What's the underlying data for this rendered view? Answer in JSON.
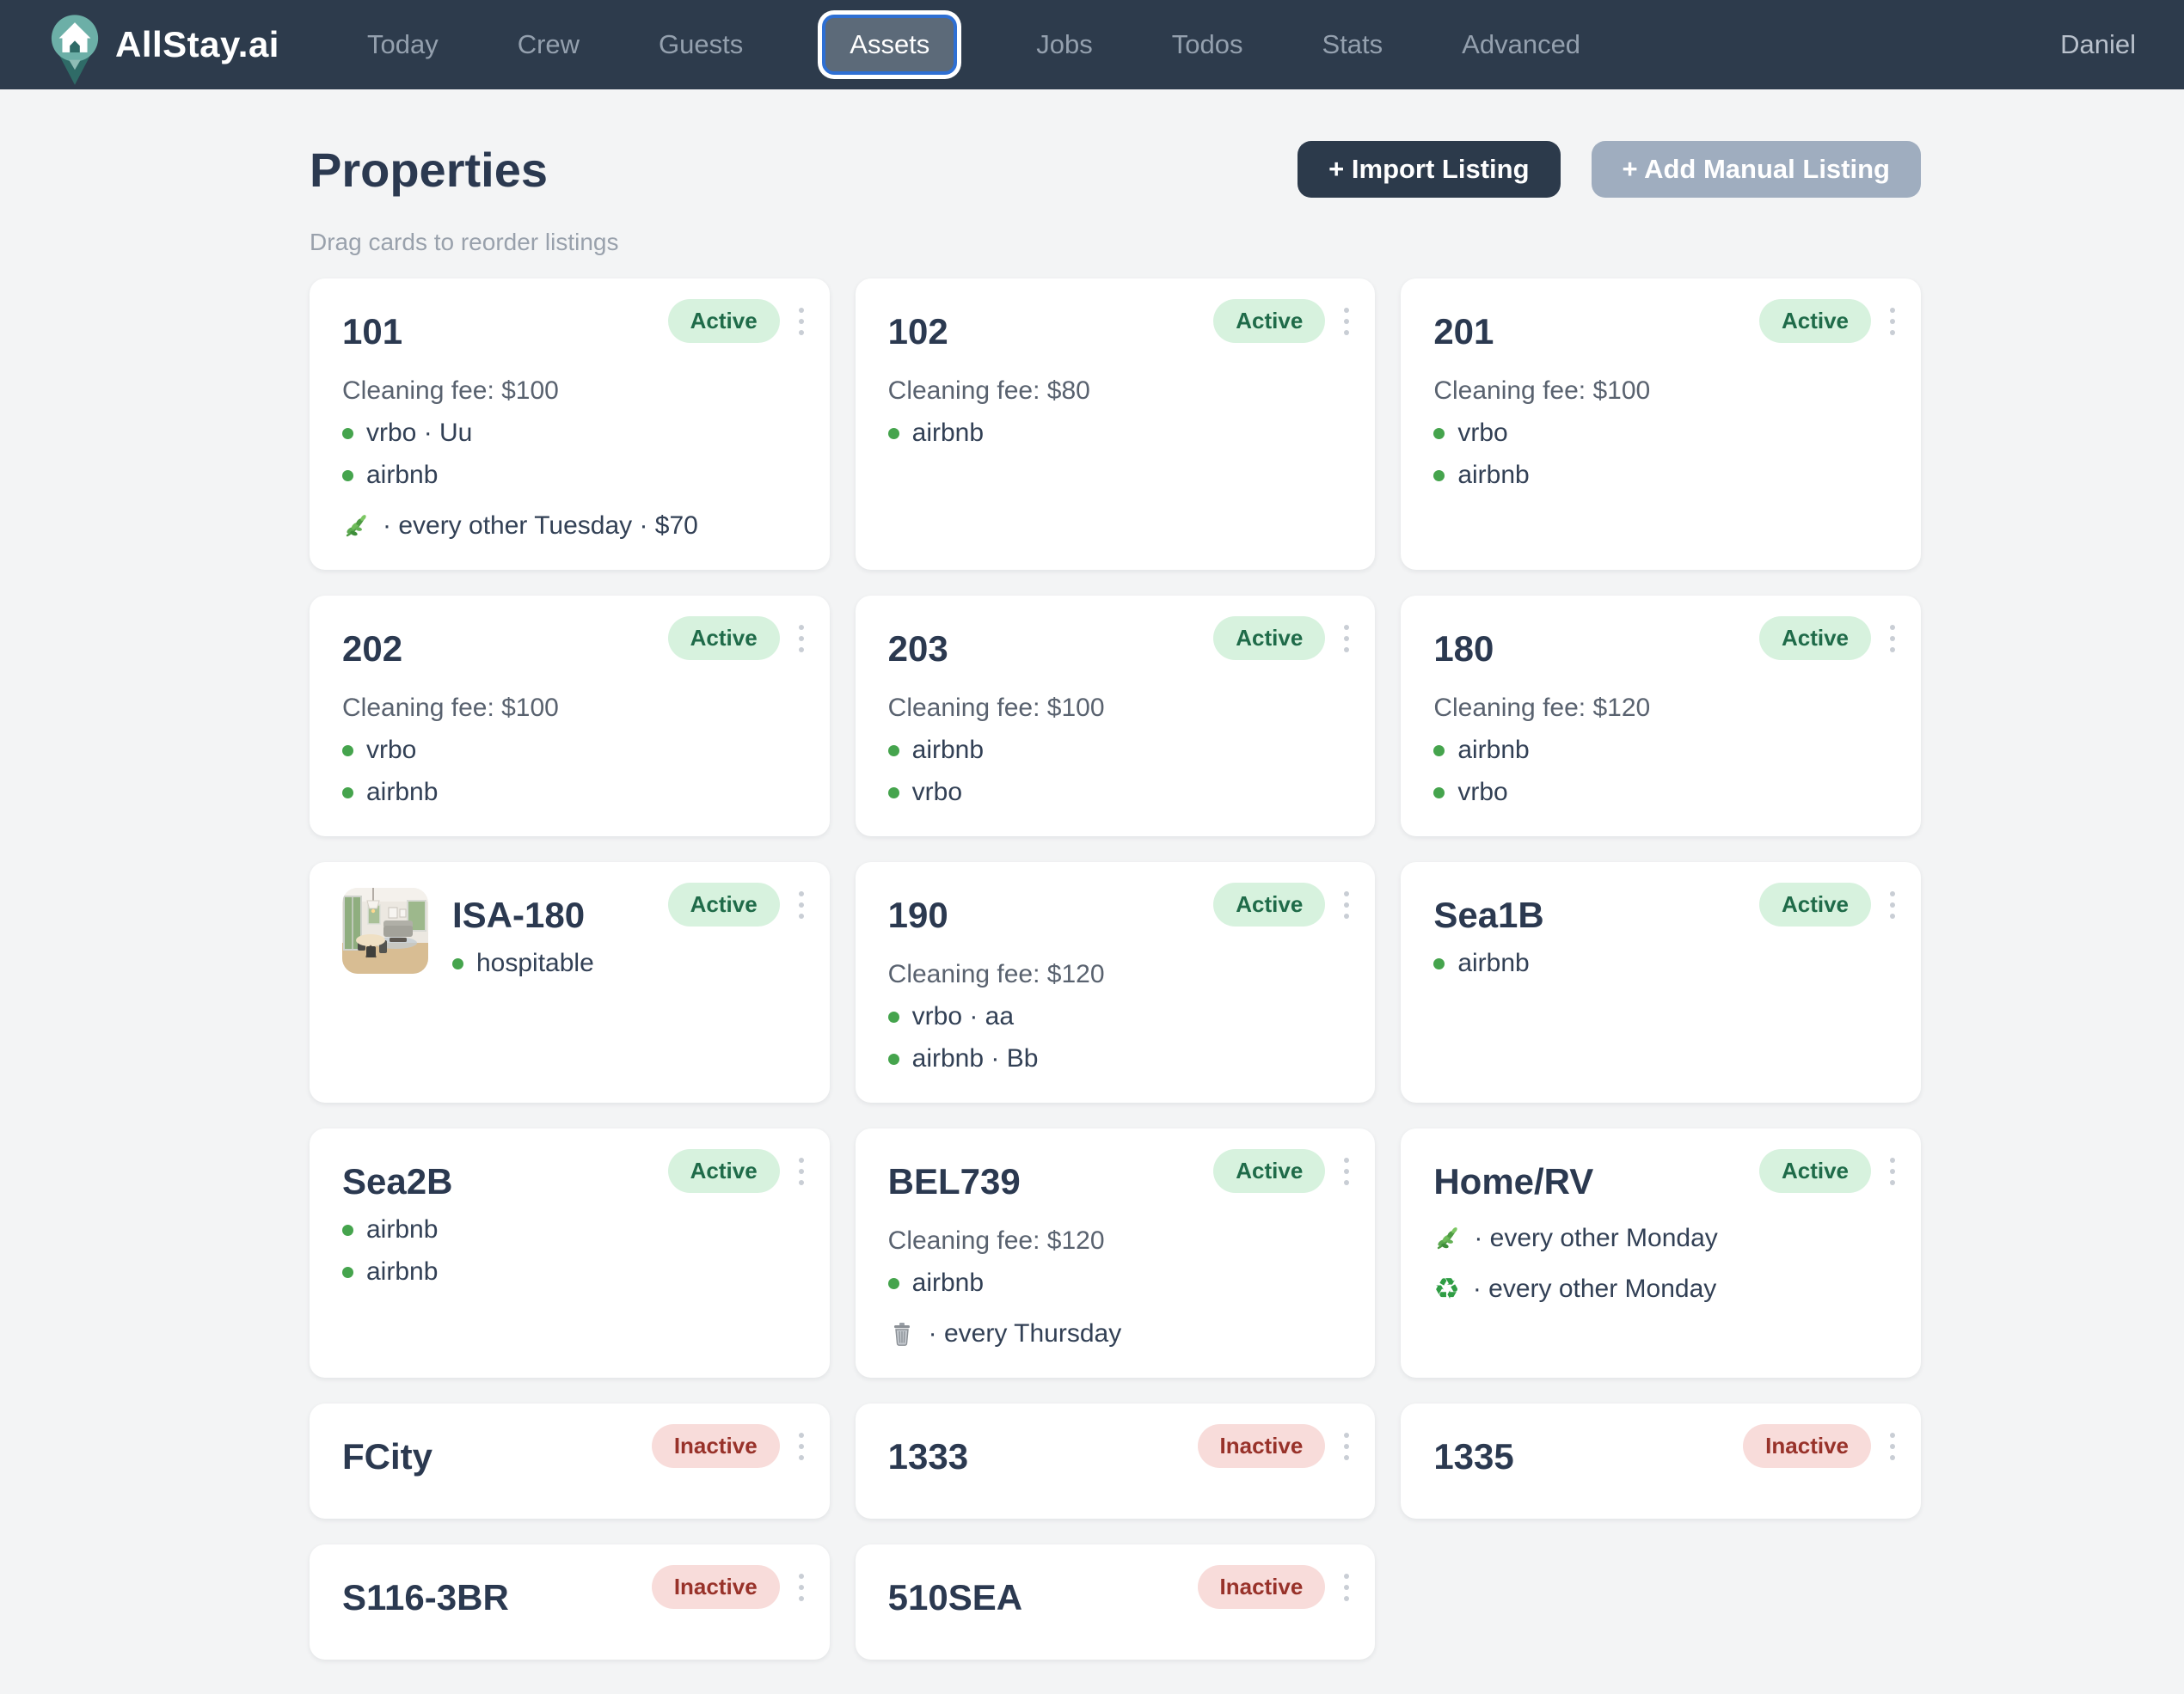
{
  "nav": {
    "brand": "AllStay.ai",
    "items": [
      {
        "label": "Today",
        "active": false
      },
      {
        "label": "Crew",
        "active": false
      },
      {
        "label": "Guests",
        "active": false
      },
      {
        "label": "Assets",
        "active": true
      },
      {
        "label": "Jobs",
        "active": false
      },
      {
        "label": "Todos",
        "active": false
      },
      {
        "label": "Stats",
        "active": false
      },
      {
        "label": "Advanced",
        "active": false
      }
    ],
    "user": "Daniel"
  },
  "header": {
    "title": "Properties",
    "subtitle": "Drag cards to reorder listings",
    "import_button": "+ Import Listing",
    "add_button": "+ Add Manual Listing"
  },
  "colors": {
    "nav_bg": "#2d3b4c",
    "page_bg": "#f3f4f5",
    "active_nav_pill_bg": "#5c6a79",
    "active_nav_border": "#2e6fd3",
    "import_button_bg": "#2c3a4b",
    "add_button_bg": "#9fadbf",
    "active_badge_bg": "#d7f2de",
    "active_badge_text": "#1f6b49",
    "inactive_badge_bg": "#f8dcda",
    "inactive_badge_text": "#98322a",
    "channel_dot": "#45a44d"
  },
  "icons": {
    "dot": "green-dot",
    "leaf": "leaf-sprig",
    "trash": "trash-can",
    "recycle": "recycle-symbol"
  },
  "cards": [
    {
      "name": "101",
      "status": "Active",
      "fee": "Cleaning fee: $100",
      "lines": [
        {
          "icon": "dot",
          "label": "vrbo · Uu"
        },
        {
          "icon": "dot",
          "label": "airbnb"
        },
        {
          "icon": "leaf",
          "label": "· every other Tuesday · $70"
        }
      ]
    },
    {
      "name": "102",
      "status": "Active",
      "fee": "Cleaning fee: $80",
      "lines": [
        {
          "icon": "dot",
          "label": "airbnb"
        }
      ]
    },
    {
      "name": "201",
      "status": "Active",
      "fee": "Cleaning fee: $100",
      "lines": [
        {
          "icon": "dot",
          "label": "vrbo"
        },
        {
          "icon": "dot",
          "label": "airbnb"
        }
      ]
    },
    {
      "name": "202",
      "status": "Active",
      "fee": "Cleaning fee: $100",
      "lines": [
        {
          "icon": "dot",
          "label": "vrbo"
        },
        {
          "icon": "dot",
          "label": "airbnb"
        }
      ]
    },
    {
      "name": "203",
      "status": "Active",
      "fee": "Cleaning fee: $100",
      "lines": [
        {
          "icon": "dot",
          "label": "airbnb"
        },
        {
          "icon": "dot",
          "label": "vrbo"
        }
      ]
    },
    {
      "name": "180",
      "status": "Active",
      "fee": "Cleaning fee: $120",
      "lines": [
        {
          "icon": "dot",
          "label": "airbnb"
        },
        {
          "icon": "dot",
          "label": "vrbo"
        }
      ]
    },
    {
      "name": "ISA-180",
      "status": "Active",
      "thumb": true,
      "lines": [
        {
          "icon": "dot",
          "label": "hospitable"
        }
      ]
    },
    {
      "name": "190",
      "status": "Active",
      "fee": "Cleaning fee: $120",
      "lines": [
        {
          "icon": "dot",
          "label": "vrbo · aa"
        },
        {
          "icon": "dot",
          "label": "airbnb · Bb"
        }
      ]
    },
    {
      "name": "Sea1B",
      "status": "Active",
      "lines": [
        {
          "icon": "dot",
          "label": "airbnb"
        }
      ]
    },
    {
      "name": "Sea2B",
      "status": "Active",
      "lines": [
        {
          "icon": "dot",
          "label": "airbnb"
        },
        {
          "icon": "dot",
          "label": "airbnb"
        }
      ]
    },
    {
      "name": "BEL739",
      "status": "Active",
      "fee": "Cleaning fee: $120",
      "lines": [
        {
          "icon": "dot",
          "label": "airbnb"
        },
        {
          "icon": "trash",
          "label": "· every Thursday"
        }
      ]
    },
    {
      "name": "Home/RV",
      "status": "Active",
      "lines": [
        {
          "icon": "leaf",
          "label": "· every other Monday"
        },
        {
          "icon": "recycle",
          "label": "· every other Monday"
        }
      ]
    },
    {
      "name": "FCity",
      "status": "Inactive"
    },
    {
      "name": "1333",
      "status": "Inactive"
    },
    {
      "name": "1335",
      "status": "Inactive"
    },
    {
      "name": "S116-3BR",
      "status": "Inactive"
    },
    {
      "name": "510SEA",
      "status": "Inactive"
    }
  ]
}
